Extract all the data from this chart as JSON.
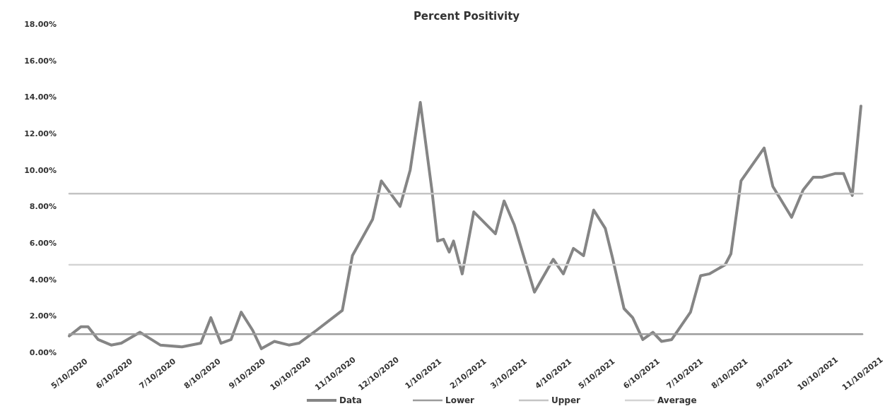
{
  "chart_data": {
    "type": "line",
    "title": "Percent Positivity",
    "x": [
      "2020-05-10",
      "2020-05-18",
      "2020-05-23",
      "2020-05-30",
      "2020-06-08",
      "2020-06-15",
      "2020-06-28",
      "2020-07-04",
      "2020-07-12",
      "2020-07-27",
      "2020-08-09",
      "2020-08-16",
      "2020-08-23",
      "2020-08-30",
      "2020-09-06",
      "2020-09-14",
      "2020-09-20",
      "2020-09-29",
      "2020-10-09",
      "2020-10-16",
      "2020-10-28",
      "2020-11-15",
      "2020-11-22",
      "2020-12-06",
      "2020-12-12",
      "2020-12-25",
      "2021-01-01",
      "2021-01-08",
      "2021-01-16",
      "2021-01-20",
      "2021-01-24",
      "2021-01-28",
      "2021-01-31",
      "2021-02-06",
      "2021-02-14",
      "2021-03-01",
      "2021-03-07",
      "2021-03-14",
      "2021-03-28",
      "2021-04-10",
      "2021-04-17",
      "2021-04-24",
      "2021-05-01",
      "2021-05-08",
      "2021-05-16",
      "2021-05-21",
      "2021-05-29",
      "2021-06-04",
      "2021-06-11",
      "2021-06-18",
      "2021-06-24",
      "2021-07-01",
      "2021-07-14",
      "2021-07-21",
      "2021-07-27",
      "2021-08-07",
      "2021-08-11",
      "2021-08-18",
      "2021-09-03",
      "2021-09-09",
      "2021-09-22",
      "2021-09-30",
      "2021-10-07",
      "2021-10-13",
      "2021-10-22",
      "2021-10-28",
      "2021-11-03",
      "2021-11-09"
    ],
    "series": [
      {
        "name": "Data",
        "color": "#858585",
        "values": [
          0.9,
          1.4,
          1.4,
          0.7,
          0.4,
          0.5,
          1.1,
          0.8,
          0.4,
          0.3,
          0.5,
          1.9,
          0.5,
          0.7,
          2.2,
          1.2,
          0.2,
          0.6,
          0.4,
          0.5,
          1.2,
          2.3,
          5.3,
          7.3,
          9.4,
          8.0,
          10.0,
          13.7,
          8.9,
          6.1,
          6.2,
          5.5,
          6.1,
          4.3,
          7.7,
          6.5,
          8.3,
          7.0,
          3.3,
          5.1,
          4.3,
          5.7,
          5.3,
          7.8,
          6.8,
          5.2,
          2.4,
          1.9,
          0.7,
          1.1,
          0.6,
          0.7,
          2.2,
          4.2,
          4.3,
          4.8,
          5.4,
          9.4,
          11.2,
          9.1,
          7.4,
          8.9,
          9.6,
          9.6,
          9.8,
          9.8,
          8.6,
          13.5
        ]
      },
      {
        "name": "Lower",
        "color": "#9c9c9c",
        "x": [
          "2020-05-10",
          "2021-11-10"
        ],
        "values": [
          1.0,
          1.0
        ]
      },
      {
        "name": "Upper",
        "color": "#c4c4c4",
        "x": [
          "2020-05-10",
          "2021-11-10"
        ],
        "values": [
          8.7,
          8.7
        ]
      },
      {
        "name": "Average",
        "color": "#d4d4d4",
        "x": [
          "2020-05-10",
          "2021-11-10"
        ],
        "values": [
          4.8,
          4.8
        ]
      }
    ],
    "xlim": [
      "2020-05-10",
      "2021-11-10"
    ],
    "xticks": [
      {
        "value": "2020-05-10",
        "label": "5/10/2020"
      },
      {
        "value": "2020-06-10",
        "label": "6/10/2020"
      },
      {
        "value": "2020-07-10",
        "label": "7/10/2020"
      },
      {
        "value": "2020-08-10",
        "label": "8/10/2020"
      },
      {
        "value": "2020-09-10",
        "label": "9/10/2020"
      },
      {
        "value": "2020-10-10",
        "label": "10/10/2020"
      },
      {
        "value": "2020-11-10",
        "label": "11/10/2020"
      },
      {
        "value": "2020-12-10",
        "label": "12/10/2020"
      },
      {
        "value": "2021-01-10",
        "label": "1/10/2021"
      },
      {
        "value": "2021-02-10",
        "label": "2/10/2021"
      },
      {
        "value": "2021-03-10",
        "label": "3/10/2021"
      },
      {
        "value": "2021-04-10",
        "label": "4/10/2021"
      },
      {
        "value": "2021-05-10",
        "label": "5/10/2021"
      },
      {
        "value": "2021-06-10",
        "label": "6/10/2021"
      },
      {
        "value": "2021-07-10",
        "label": "7/10/2021"
      },
      {
        "value": "2021-08-10",
        "label": "8/10/2021"
      },
      {
        "value": "2021-09-10",
        "label": "9/10/2021"
      },
      {
        "value": "2021-10-10",
        "label": "10/10/2021"
      },
      {
        "value": "2021-11-10",
        "label": "11/10/2021"
      }
    ],
    "ylim": [
      0,
      18
    ],
    "yticks": [
      {
        "value": 0,
        "label": "0.00%"
      },
      {
        "value": 2,
        "label": "2.00%"
      },
      {
        "value": 4,
        "label": "4.00%"
      },
      {
        "value": 6,
        "label": "6.00%"
      },
      {
        "value": 8,
        "label": "8.00%"
      },
      {
        "value": 10,
        "label": "10.00%"
      },
      {
        "value": 12,
        "label": "12.00%"
      },
      {
        "value": 14,
        "label": "14.00%"
      },
      {
        "value": 16,
        "label": "16.00%"
      },
      {
        "value": 18,
        "label": "18.00%"
      }
    ],
    "legend": "bottom",
    "marker": "none",
    "line_style": "solid"
  }
}
